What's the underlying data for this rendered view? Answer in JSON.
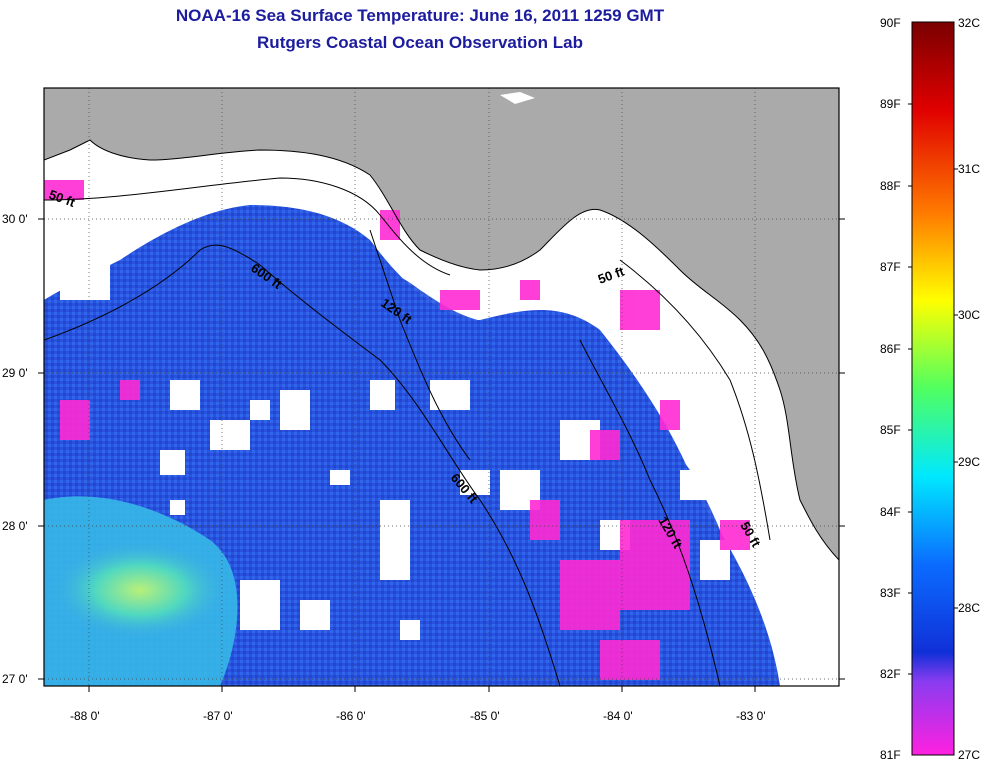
{
  "title": {
    "line1": "NOAA-16 Sea Surface Temperature:  June 16, 2011 1259 GMT",
    "line2": "Rutgers Coastal Ocean Observation Lab"
  },
  "axes": {
    "lat_labels": [
      "30 0'",
      "29 0'",
      "28 0'",
      "27 0'"
    ],
    "lon_labels": [
      "-88 0'",
      "-87 0'",
      "-86 0'",
      "-85 0'",
      "-84 0'",
      "-83 0'"
    ]
  },
  "contours": {
    "labels": [
      "50 ft",
      "600 ft",
      "120 ft",
      "600 ft",
      "50 ft",
      "120 ft",
      "50 ft"
    ]
  },
  "colorbar": {
    "fahrenheit": [
      "90F",
      "89F",
      "88F",
      "87F",
      "86F",
      "85F",
      "84F",
      "83F",
      "82F",
      "81F"
    ],
    "celsius": [
      "32C",
      "31C",
      "30C",
      "29C",
      "28C",
      "27C"
    ]
  },
  "colors": {
    "land": "#aaaaaa",
    "cloud": "#ffffff",
    "sst_main": "#2f5fe0",
    "sst_warm": "#45c8e0",
    "sst_hot": "#ff2ad4"
  }
}
